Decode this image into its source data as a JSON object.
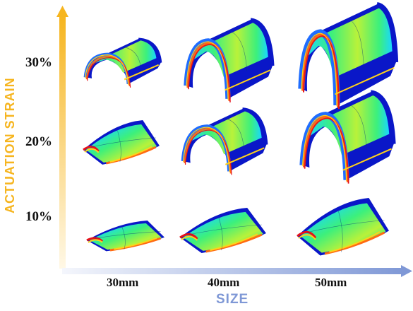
{
  "y_axis": {
    "label": "ACTUATION STRAIN",
    "color_top": "#f6b51f",
    "color_bottom": "#fff6d8"
  },
  "x_axis": {
    "label": "SIZE",
    "color_left": "#eef2fb",
    "color_right": "#7f98d6"
  },
  "rows": [
    "30%",
    "20%",
    "10%"
  ],
  "columns": [
    "30mm",
    "40mm",
    "50mm"
  ],
  "colormap": [
    "#0a17c8",
    "#1f6dff",
    "#19d6ff",
    "#3cf07c",
    "#b9f23a",
    "#ffd21a",
    "#ff6a12",
    "#e5121a"
  ]
}
